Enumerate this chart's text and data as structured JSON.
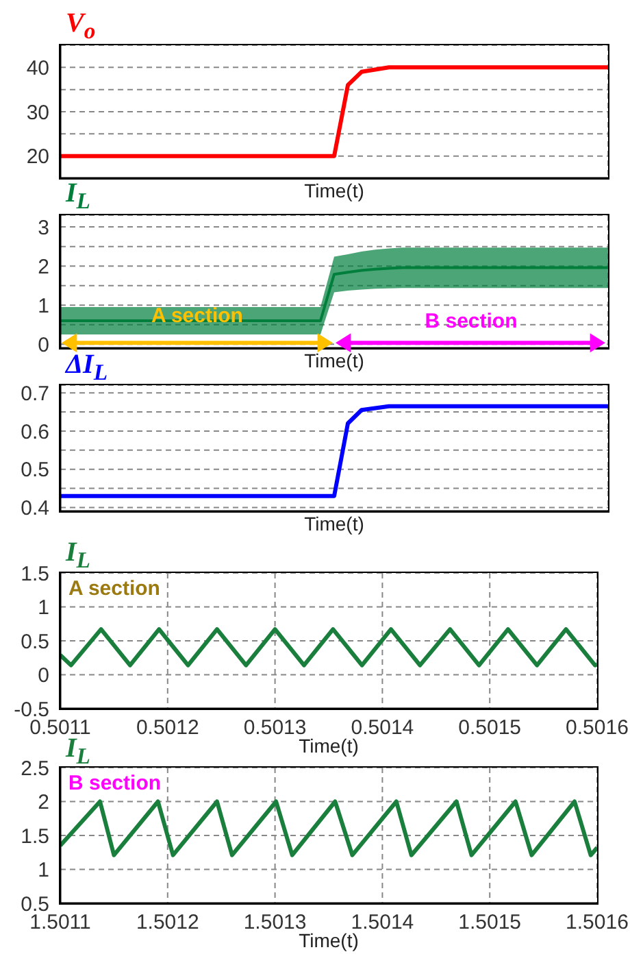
{
  "chart_data": [
    {
      "type": "line",
      "title": "V$_{o}$",
      "xlabel": "Time(t)",
      "categories": [
        null,
        null,
        null,
        null,
        null,
        null,
        null,
        null,
        null,
        null,
        null,
        null,
        null,
        null,
        null,
        null,
        null,
        null,
        null,
        null,
        null,
        null,
        null,
        null,
        null,
        null,
        null,
        null,
        null,
        null,
        null,
        null,
        null,
        null,
        null,
        null,
        null,
        null,
        null,
        null,
        null
      ],
      "series": [
        {
          "color": "#ff0000",
          "values": [
            20,
            20,
            20,
            20,
            20,
            20,
            20,
            20,
            20,
            20,
            20,
            20,
            20,
            20,
            20,
            20,
            20,
            20,
            20,
            20,
            20,
            36,
            39,
            39.5,
            40,
            40,
            40,
            40,
            40,
            40,
            40,
            40,
            40,
            40,
            40,
            40,
            40,
            40,
            40,
            40,
            40
          ]
        }
      ],
      "ylim": [
        15,
        45
      ],
      "yticks": [
        20,
        {
          "value": 25,
          "label": null
        },
        30,
        {
          "value": 35,
          "label": null
        },
        40
      ],
      "grid": true,
      "tick_labels": "y"
    },
    {
      "type": "line",
      "title": "I$_{L}$",
      "xlabel": "Time(t)",
      "categories": [
        null,
        null,
        null,
        null,
        null,
        null,
        null,
        null,
        null,
        null,
        null,
        null,
        null,
        null,
        null,
        null,
        null,
        null,
        null,
        null,
        null,
        null,
        null,
        null,
        null,
        null,
        null,
        null,
        null,
        null,
        null,
        null,
        null,
        null,
        null,
        null,
        null,
        null,
        null,
        null,
        null
      ],
      "series": [
        {
          "color": "#007f3c",
          "values": [
            0.6,
            0.6,
            0.6,
            0.6,
            0.6,
            0.6,
            0.6,
            0.6,
            0.6,
            0.6,
            0.6,
            0.6,
            0.6,
            0.6,
            0.6,
            0.6,
            0.6,
            0.6,
            0.6,
            0.6,
            1.79,
            1.84,
            1.89,
            1.92,
            1.94,
            1.96,
            1.96,
            1.96,
            1.96,
            1.96,
            1.96,
            1.96,
            1.96,
            1.96,
            1.96,
            1.96,
            1.96,
            1.96,
            1.96,
            1.96,
            1.96
          ],
          "upper": [
            0.95,
            0.95,
            0.95,
            0.95,
            0.95,
            0.95,
            0.95,
            0.95,
            0.95,
            0.95,
            0.95,
            0.95,
            0.95,
            0.95,
            0.95,
            0.95,
            0.95,
            0.95,
            0.95,
            0.95,
            2.24,
            2.3,
            2.37,
            2.42,
            2.45,
            2.47,
            2.47,
            2.47,
            2.47,
            2.47,
            2.47,
            2.47,
            2.47,
            2.47,
            2.47,
            2.47,
            2.47,
            2.47,
            2.47,
            2.47,
            2.47
          ],
          "lower": [
            0.25,
            0.25,
            0.25,
            0.25,
            0.25,
            0.25,
            0.25,
            0.25,
            0.25,
            0.25,
            0.25,
            0.25,
            0.25,
            0.25,
            0.25,
            0.25,
            0.25,
            0.25,
            0.25,
            0.25,
            1.33,
            1.37,
            1.4,
            1.42,
            1.43,
            1.44,
            1.44,
            1.44,
            1.44,
            1.44,
            1.44,
            1.44,
            1.44,
            1.44,
            1.44,
            1.44,
            1.44,
            1.44,
            1.44,
            1.44,
            1.44
          ]
        }
      ],
      "ylim": [
        -0.1,
        3.3
      ],
      "yticks": [
        0,
        {
          "value": 0.5,
          "label": null
        },
        1,
        {
          "value": 1.5,
          "label": null
        },
        2,
        {
          "value": 2.5,
          "label": null
        },
        3
      ],
      "grid": true,
      "tick_labels": "y",
      "annotations": [
        "A section",
        "B section"
      ]
    },
    {
      "type": "line",
      "title": "ΔI$_{L}$",
      "xlabel": "Time(t)",
      "categories": [
        null,
        null,
        null,
        null,
        null,
        null,
        null,
        null,
        null,
        null,
        null,
        null,
        null,
        null,
        null,
        null,
        null,
        null,
        null,
        null,
        null,
        null,
        null,
        null,
        null,
        null,
        null,
        null,
        null,
        null,
        null,
        null,
        null,
        null,
        null,
        null,
        null,
        null,
        null,
        null,
        null
      ],
      "series": [
        {
          "color": "#0000ff",
          "values": [
            0.43,
            0.43,
            0.43,
            0.43,
            0.43,
            0.43,
            0.43,
            0.43,
            0.43,
            0.43,
            0.43,
            0.43,
            0.43,
            0.43,
            0.43,
            0.43,
            0.43,
            0.43,
            0.43,
            0.43,
            0.43,
            0.62,
            0.655,
            0.66,
            0.665,
            0.665,
            0.665,
            0.665,
            0.665,
            0.665,
            0.665,
            0.665,
            0.665,
            0.665,
            0.665,
            0.665,
            0.665,
            0.665,
            0.665,
            0.665,
            0.665
          ]
        }
      ],
      "ylim": [
        0.39,
        0.72
      ],
      "yticks": [
        0.4,
        {
          "value": 0.45,
          "label": null
        },
        0.5,
        {
          "value": 0.55,
          "label": null
        },
        0.6,
        {
          "value": 0.65,
          "label": null
        },
        0.7
      ],
      "grid": true,
      "tick_labels": "y"
    },
    {
      "type": "line",
      "title": "I$_{L}$",
      "xlabel": "Time(t)",
      "x": [
        0.5011,
        0.50111,
        0.501138,
        0.501165,
        0.501192,
        0.501219,
        0.501246,
        0.501273,
        0.5013,
        0.501327,
        0.501354,
        0.501381,
        0.501408,
        0.501435,
        0.501463,
        0.50149,
        0.501517,
        0.501544,
        0.501571,
        0.501598,
        0.5016
      ],
      "series": [
        {
          "color": "#1a7f3c",
          "values": [
            0.29,
            0.14,
            0.67,
            0.14,
            0.67,
            0.14,
            0.67,
            0.14,
            0.67,
            0.14,
            0.67,
            0.14,
            0.67,
            0.14,
            0.67,
            0.14,
            0.67,
            0.14,
            0.67,
            0.14,
            0.15
          ]
        }
      ],
      "xlim": [
        0.5011,
        0.5016
      ],
      "xticks": [
        0.5011,
        0.5012,
        0.5013,
        0.5014,
        0.5015,
        0.5016
      ],
      "ylim": [
        -0.5,
        1.5
      ],
      "yticks": [
        -0.5,
        0,
        0.5,
        1,
        1.5
      ],
      "grid": true,
      "annotations": [
        "A section"
      ]
    },
    {
      "type": "line",
      "title": "I$_{L}$",
      "xlabel": "Time(t)",
      "x": [
        1.5011,
        1.501137,
        1.50115,
        1.501191,
        1.501205,
        1.501246,
        1.50126,
        1.501301,
        1.501316,
        1.501356,
        1.501372,
        1.501413,
        1.501427,
        1.501469,
        1.501483,
        1.501524,
        1.501539,
        1.501579,
        1.501594,
        1.5016
      ],
      "series": [
        {
          "color": "#1a7f3c",
          "values": [
            1.35,
            2,
            1.21,
            2,
            1.21,
            2,
            1.21,
            2,
            1.21,
            2,
            1.21,
            2,
            1.21,
            2,
            1.21,
            2,
            1.21,
            2,
            1.21,
            1.32
          ]
        }
      ],
      "xlim": [
        1.5011,
        1.5016
      ],
      "xticks": [
        1.5011,
        1.5012,
        1.5013,
        1.5014,
        1.5015,
        1.5016
      ],
      "ylim": [
        0.5,
        2.5
      ],
      "yticks": [
        0.5,
        1,
        1.5,
        2,
        2.5
      ],
      "grid": true,
      "annotations": [
        "B section"
      ]
    }
  ]
}
